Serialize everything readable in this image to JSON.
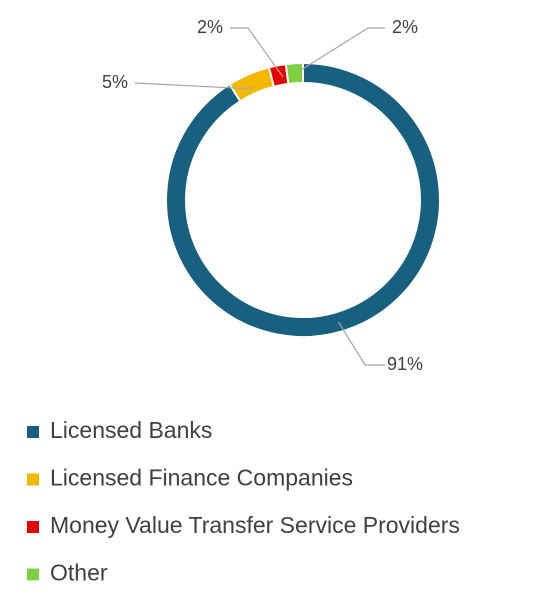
{
  "chart_data": {
    "type": "donut",
    "categories": [
      "Licensed Banks",
      "Licensed Finance Companies",
      "Money Value Transfer Service Providers",
      "Other"
    ],
    "values": [
      91,
      5,
      2,
      2
    ],
    "value_labels": [
      "91%",
      "5%",
      "2%",
      "2%"
    ],
    "colors": [
      "#17607f",
      "#f5b800",
      "#e60000",
      "#7ed040"
    ],
    "legend": "bottom"
  }
}
